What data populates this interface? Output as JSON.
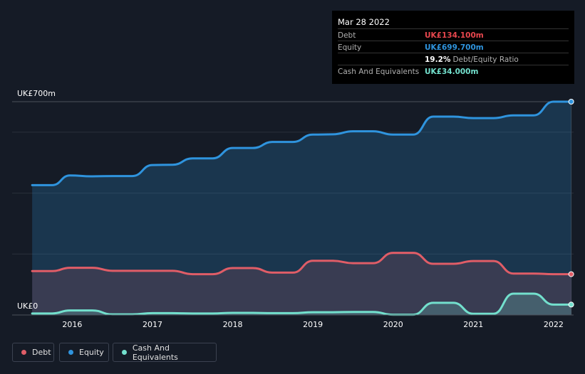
{
  "tooltip": {
    "date": "Mar 28 2022",
    "rows": [
      {
        "label": "Debt",
        "value": "UK£134.100m",
        "color": "#e8474e"
      },
      {
        "label": "Equity",
        "value": "UK£699.700m",
        "color": "#2f94de"
      },
      {
        "label": "",
        "value": "19.2%",
        "suffix": "Debt/Equity Ratio",
        "color": "#ffffff"
      },
      {
        "label": "Cash And Equivalents",
        "value": "UK£34.000m",
        "color": "#73e0cd"
      }
    ]
  },
  "legend": [
    {
      "label": "Debt",
      "color": "#e05d67"
    },
    {
      "label": "Equity",
      "color": "#2f94de"
    },
    {
      "label": "Cash And Equivalents",
      "color": "#73e0cd"
    }
  ],
  "chart_data": {
    "type": "area",
    "title": "",
    "xlabel": "",
    "ylabel": "",
    "ylim": [
      0,
      700
    ],
    "y_tick_labels": [
      "UK£0",
      "UK£700m"
    ],
    "x_ticks": [
      {
        "label": "2016",
        "x": 2016.0
      },
      {
        "label": "2017",
        "x": 2017.0
      },
      {
        "label": "2018",
        "x": 2018.0
      },
      {
        "label": "2019",
        "x": 2019.0
      },
      {
        "label": "2020",
        "x": 2020.0
      },
      {
        "label": "2021",
        "x": 2021.0
      },
      {
        "label": "2022",
        "x": 2022.0
      }
    ],
    "xlim": [
      2015.25,
      2022.25
    ],
    "series": [
      {
        "name": "Equity",
        "color": "#2f94de",
        "points": [
          [
            2015.5,
            426
          ],
          [
            2015.75,
            426
          ],
          [
            2015.97,
            458
          ],
          [
            2016.25,
            455
          ],
          [
            2016.5,
            456
          ],
          [
            2016.75,
            456
          ],
          [
            2017.0,
            492
          ],
          [
            2017.25,
            493
          ],
          [
            2017.5,
            514
          ],
          [
            2017.75,
            514
          ],
          [
            2018.0,
            548
          ],
          [
            2018.25,
            548
          ],
          [
            2018.5,
            568
          ],
          [
            2018.75,
            568
          ],
          [
            2019.0,
            592
          ],
          [
            2019.25,
            593
          ],
          [
            2019.5,
            603
          ],
          [
            2019.75,
            603
          ],
          [
            2020.0,
            592
          ],
          [
            2020.25,
            592
          ],
          [
            2020.5,
            651
          ],
          [
            2020.75,
            651
          ],
          [
            2021.0,
            646
          ],
          [
            2021.25,
            646
          ],
          [
            2021.5,
            655
          ],
          [
            2021.75,
            655
          ],
          [
            2022.0,
            700
          ],
          [
            2022.22,
            700
          ]
        ]
      },
      {
        "name": "Debt",
        "color": "#e05d67",
        "points": [
          [
            2015.5,
            144
          ],
          [
            2015.75,
            144
          ],
          [
            2015.97,
            155
          ],
          [
            2016.25,
            155
          ],
          [
            2016.5,
            145
          ],
          [
            2016.75,
            145
          ],
          [
            2017.0,
            145
          ],
          [
            2017.25,
            145
          ],
          [
            2017.5,
            134
          ],
          [
            2017.75,
            134
          ],
          [
            2018.0,
            154
          ],
          [
            2018.25,
            154
          ],
          [
            2018.5,
            139
          ],
          [
            2018.75,
            139
          ],
          [
            2019.0,
            178
          ],
          [
            2019.25,
            178
          ],
          [
            2019.5,
            170
          ],
          [
            2019.75,
            170
          ],
          [
            2020.0,
            204
          ],
          [
            2020.25,
            204
          ],
          [
            2020.5,
            168
          ],
          [
            2020.75,
            168
          ],
          [
            2021.0,
            177
          ],
          [
            2021.25,
            177
          ],
          [
            2021.5,
            136
          ],
          [
            2021.75,
            136
          ],
          [
            2022.0,
            134
          ],
          [
            2022.22,
            134
          ]
        ]
      },
      {
        "name": "Cash And Equivalents",
        "color": "#73e0cd",
        "points": [
          [
            2015.5,
            5
          ],
          [
            2015.75,
            5
          ],
          [
            2015.97,
            15
          ],
          [
            2016.25,
            15
          ],
          [
            2016.5,
            2
          ],
          [
            2016.75,
            2
          ],
          [
            2017.0,
            6
          ],
          [
            2017.25,
            6
          ],
          [
            2017.5,
            5
          ],
          [
            2017.75,
            5
          ],
          [
            2018.0,
            7
          ],
          [
            2018.25,
            7
          ],
          [
            2018.5,
            6
          ],
          [
            2018.75,
            6
          ],
          [
            2019.0,
            9
          ],
          [
            2019.25,
            9
          ],
          [
            2019.5,
            10
          ],
          [
            2019.75,
            10
          ],
          [
            2020.0,
            1
          ],
          [
            2020.25,
            1
          ],
          [
            2020.5,
            40
          ],
          [
            2020.75,
            40
          ],
          [
            2021.0,
            4
          ],
          [
            2021.25,
            4
          ],
          [
            2021.5,
            70
          ],
          [
            2021.75,
            70
          ],
          [
            2022.0,
            34
          ],
          [
            2022.22,
            34
          ]
        ]
      }
    ]
  }
}
